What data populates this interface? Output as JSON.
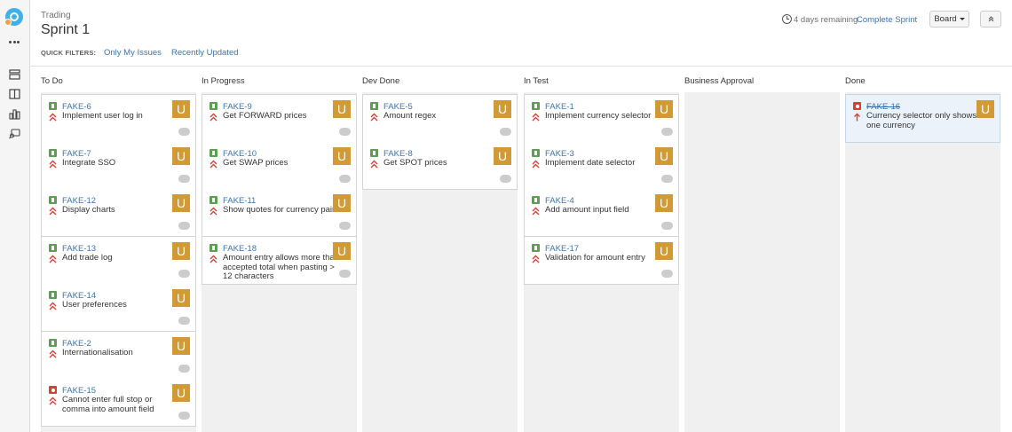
{
  "header": {
    "project": "Trading",
    "sprint_title": "Sprint 1",
    "quick_filters_label": "QUICK FILTERS:",
    "filters": [
      "Only My Issues",
      "Recently Updated"
    ],
    "remaining": "4 days remaining",
    "complete_sprint": "Complete Sprint",
    "board_button": "Board"
  },
  "colors": {
    "link": "#3b73af",
    "story": "#5aa04f",
    "bug": "#d04437",
    "avatar": "#d29a36",
    "priority": "#d04437"
  },
  "columns": [
    {
      "name": "To Do",
      "cards": [
        {
          "key": "FAKE-6",
          "type": "story",
          "priority": "highest",
          "summary": "Implement user log in",
          "avatar": "U"
        },
        {
          "key": "FAKE-7",
          "type": "story",
          "priority": "highest",
          "summary": "Integrate SSO",
          "avatar": "U"
        },
        {
          "key": "FAKE-12",
          "type": "story",
          "priority": "highest",
          "summary": "Display charts",
          "avatar": "U"
        },
        {
          "key": "FAKE-13",
          "type": "story",
          "priority": "highest",
          "summary": "Add trade log",
          "avatar": "U"
        },
        {
          "key": "FAKE-14",
          "type": "story",
          "priority": "highest",
          "summary": "User preferences",
          "avatar": "U"
        },
        {
          "key": "FAKE-2",
          "type": "story",
          "priority": "highest",
          "summary": "Internationalisation",
          "avatar": "U"
        },
        {
          "key": "FAKE-15",
          "type": "bug",
          "priority": "highest",
          "summary": "Cannot enter full stop or comma into amount field",
          "avatar": "U"
        }
      ]
    },
    {
      "name": "In Progress",
      "cards": [
        {
          "key": "FAKE-9",
          "type": "story",
          "priority": "highest",
          "summary": "Get FORWARD prices",
          "avatar": "U"
        },
        {
          "key": "FAKE-10",
          "type": "story",
          "priority": "highest",
          "summary": "Get SWAP prices",
          "avatar": "U"
        },
        {
          "key": "FAKE-11",
          "type": "story",
          "priority": "highest",
          "summary": "Show quotes for currency pairs",
          "avatar": "U"
        },
        {
          "key": "FAKE-18",
          "type": "story",
          "priority": "highest",
          "summary": "Amount entry allows more than accepted total when pasting > 12 characters",
          "avatar": "U"
        }
      ]
    },
    {
      "name": "Dev Done",
      "cards": [
        {
          "key": "FAKE-5",
          "type": "story",
          "priority": "highest",
          "summary": "Amount regex",
          "avatar": "U"
        },
        {
          "key": "FAKE-8",
          "type": "story",
          "priority": "highest",
          "summary": "Get SPOT prices",
          "avatar": "U"
        }
      ]
    },
    {
      "name": "In Test",
      "cards": [
        {
          "key": "FAKE-1",
          "type": "story",
          "priority": "highest",
          "summary": "Implement currency selector",
          "avatar": "U"
        },
        {
          "key": "FAKE-3",
          "type": "story",
          "priority": "highest",
          "summary": "Implement date selector",
          "avatar": "U"
        },
        {
          "key": "FAKE-4",
          "type": "story",
          "priority": "highest",
          "summary": "Add amount input field",
          "avatar": "U"
        },
        {
          "key": "FAKE-17",
          "type": "story",
          "priority": "highest",
          "summary": "Validation for amount entry",
          "avatar": "U"
        }
      ]
    },
    {
      "name": "Business Approval",
      "cards": []
    },
    {
      "name": "Done",
      "cards": [
        {
          "key": "FAKE-16",
          "type": "bug",
          "priority": "high",
          "summary": "Currency selector only shows one currency",
          "avatar": "U",
          "done": true
        }
      ]
    }
  ]
}
